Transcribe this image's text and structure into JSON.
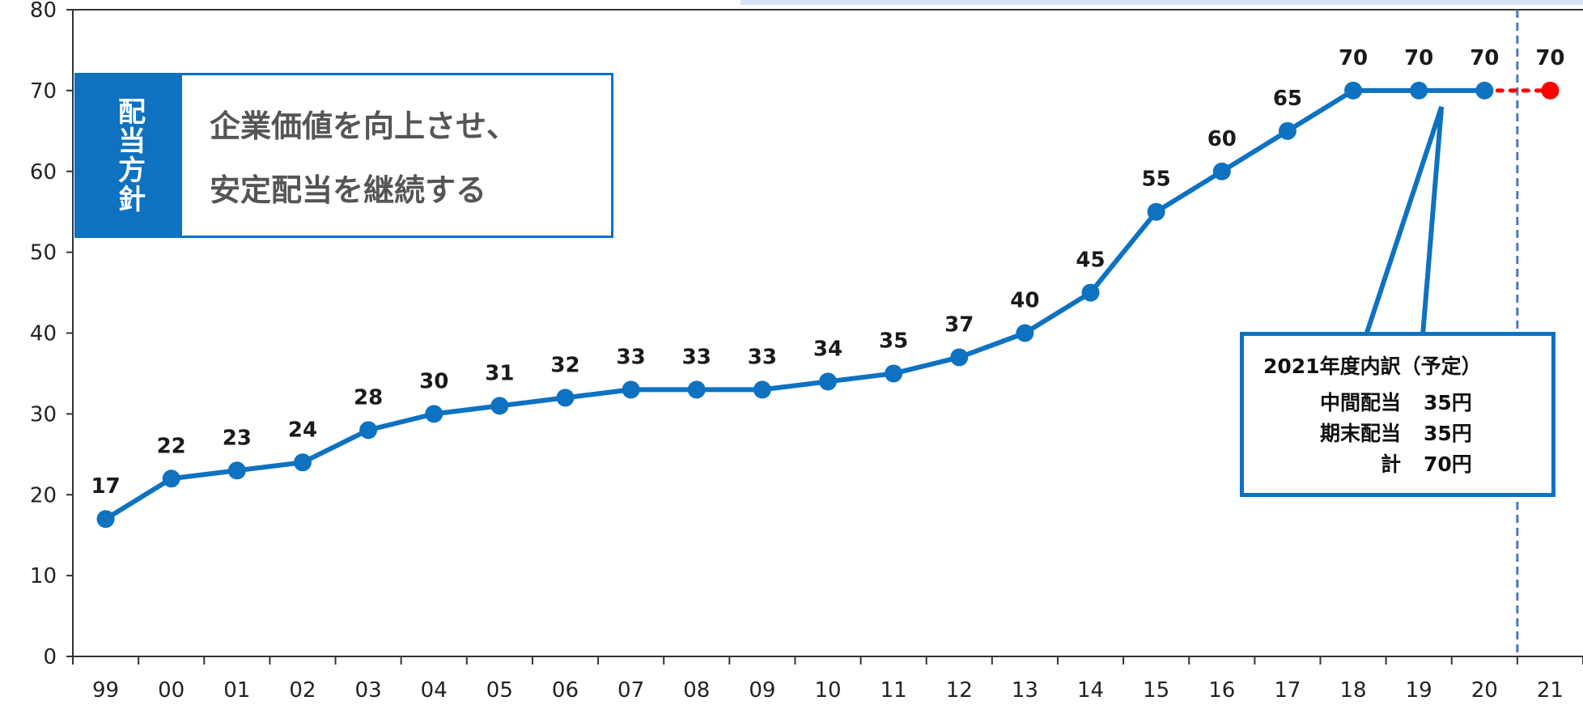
{
  "chart_data": {
    "type": "line",
    "title": "",
    "xlabel": "",
    "ylabel": "",
    "ylim": [
      0,
      80
    ],
    "yticks": [
      0,
      10,
      20,
      30,
      40,
      50,
      60,
      70,
      80
    ],
    "grid": false,
    "categories": [
      "99",
      "00",
      "01",
      "02",
      "03",
      "04",
      "05",
      "06",
      "07",
      "08",
      "09",
      "10",
      "11",
      "12",
      "13",
      "14",
      "15",
      "16",
      "17",
      "18",
      "19",
      "20",
      "21"
    ],
    "series": [
      {
        "values": [
          17,
          22,
          23,
          24,
          28,
          30,
          31,
          32,
          33,
          33,
          33,
          34,
          35,
          37,
          40,
          45,
          55,
          60,
          65,
          70,
          70,
          70,
          null
        ],
        "labels": [
          "17",
          "22",
          "23",
          "24",
          "28",
          "30",
          "31",
          "32",
          "33",
          "33",
          "33",
          "34",
          "35",
          "37",
          "40",
          "45",
          "55",
          "60",
          "65",
          "70",
          "70",
          "70",
          ""
        ],
        "color": "#0e72c0",
        "style": "solid"
      },
      {
        "values": [
          null,
          null,
          null,
          null,
          null,
          null,
          null,
          null,
          null,
          null,
          null,
          null,
          null,
          null,
          null,
          null,
          null,
          null,
          null,
          null,
          null,
          70,
          70
        ],
        "labels": [
          "",
          "",
          "",
          "",
          "",
          "",
          "",
          "",
          "",
          "",
          "",
          "",
          "",
          "",
          "",
          "",
          "",
          "",
          "",
          "",
          "",
          "",
          "70"
        ],
        "color": "#ff0000",
        "style": "dotted"
      }
    ],
    "highlight_category": "21",
    "highlight_color": "#ff0000",
    "divider_after_category": "20"
  },
  "policy": {
    "tag": "配当方針",
    "line1": "企業価値を向上させ、",
    "line2": "安定配当を継続する"
  },
  "breakdown": {
    "title": "2021年度内訳（予定）",
    "rows": [
      {
        "name": "中間配当",
        "amount": "35円"
      },
      {
        "name": "期末配当",
        "amount": "35円"
      },
      {
        "name": "計",
        "amount": "70円"
      }
    ]
  }
}
